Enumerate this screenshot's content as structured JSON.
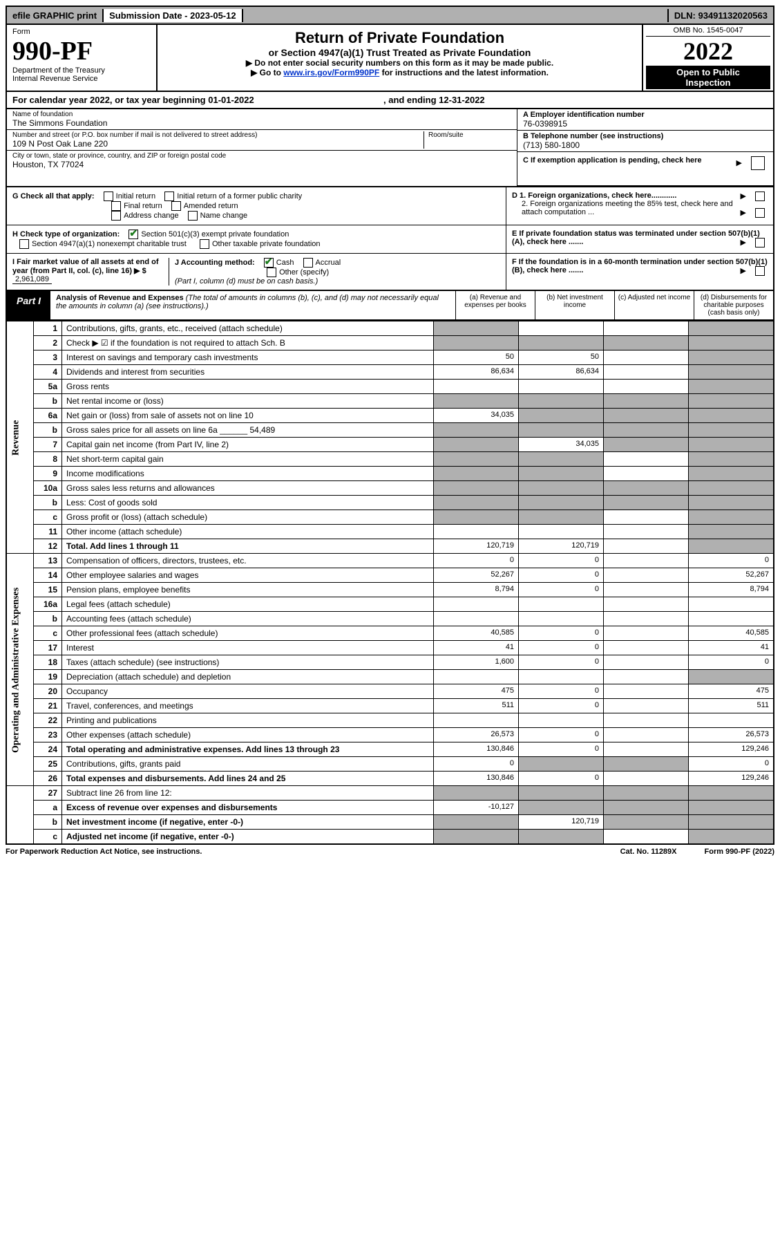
{
  "colors": {
    "shaded": "#b0b0b0",
    "link": "#0033cc",
    "check": "#1a7a1a"
  },
  "top": {
    "efile": "efile GRAPHIC print",
    "sub_label": "Submission Date - 2023-05-12",
    "dln": "DLN: 93491132020563"
  },
  "header": {
    "form_word": "Form",
    "form_num": "990-PF",
    "dept": "Department of the Treasury",
    "irs": "Internal Revenue Service",
    "title": "Return of Private Foundation",
    "subtitle": "or Section 4947(a)(1) Trust Treated as Private Foundation",
    "instr1": "▶ Do not enter social security numbers on this form as it may be made public.",
    "instr2_pre": "▶ Go to ",
    "instr2_link": "www.irs.gov/Form990PF",
    "instr2_post": " for instructions and the latest information.",
    "omb": "OMB No. 1545-0047",
    "year": "2022",
    "open1": "Open to Public",
    "open2": "Inspection"
  },
  "calyear": {
    "pre": "For calendar year 2022, or tax year beginning ",
    "begin": "01-01-2022",
    "mid": ", and ending ",
    "end": "12-31-2022"
  },
  "id": {
    "name_label": "Name of foundation",
    "name": "The Simmons Foundation",
    "addr_label": "Number and street (or P.O. box number if mail is not delivered to street address)",
    "addr": "109 N Post Oak Lane 220",
    "room_label": "Room/suite",
    "city_label": "City or town, state or province, country, and ZIP or foreign postal code",
    "city": "Houston, TX  77024",
    "a_label": "A Employer identification number",
    "a_val": "76-0398915",
    "b_label": "B Telephone number (see instructions)",
    "b_val": "(713) 580-1800",
    "c_label": "C If exemption application is pending, check here"
  },
  "g": {
    "label": "G Check all that apply:",
    "opts": [
      "Initial return",
      "Initial return of a former public charity",
      "Final return",
      "Amended return",
      "Address change",
      "Name change"
    ]
  },
  "h": {
    "label": "H Check type of organization:",
    "o1": "Section 501(c)(3) exempt private foundation",
    "o2": "Section 4947(a)(1) nonexempt charitable trust",
    "o3": "Other taxable private foundation"
  },
  "d": {
    "d1": "D 1. Foreign organizations, check here............",
    "d2": "2. Foreign organizations meeting the 85% test, check here and attach computation ..."
  },
  "e": "E  If private foundation status was terminated under section 507(b)(1)(A), check here .......",
  "f": "F  If the foundation is in a 60-month termination under section 507(b)(1)(B), check here .......",
  "i": {
    "label": "I Fair market value of all assets at end of year (from Part II, col. (c), line 16) ▶ $",
    "val": "2,961,089"
  },
  "j": {
    "label": "J Accounting method:",
    "o1": "Cash",
    "o2": "Accrual",
    "o3": "Other (specify)",
    "note": "(Part I, column (d) must be on cash basis.)"
  },
  "part1": {
    "tab": "Part I",
    "title": "Analysis of Revenue and Expenses",
    "note": " (The total of amounts in columns (b), (c), and (d) may not necessarily equal the amounts in column (a) (see instructions).)",
    "col_a": "(a)  Revenue and expenses per books",
    "col_b": "(b)  Net investment income",
    "col_c": "(c)  Adjusted net income",
    "col_d": "(d)  Disbursements for charitable purposes (cash basis only)"
  },
  "sections": {
    "revenue": "Revenue",
    "expenses": "Operating and Administrative Expenses"
  },
  "rows": [
    {
      "n": "1",
      "d": "Contributions, gifts, grants, etc., received (attach schedule)",
      "a": "",
      "b": "",
      "c": "",
      "dd": "",
      "sa": 1,
      "sd": 1
    },
    {
      "n": "2",
      "d": "Check ▶ ☑ if the foundation is not required to attach Sch. B",
      "a": "",
      "b": "",
      "c": "",
      "dd": "",
      "sb": 1,
      "sc": 1,
      "sd": 1,
      "sa": 1
    },
    {
      "n": "3",
      "d": "Interest on savings and temporary cash investments",
      "a": "50",
      "b": "50",
      "c": "",
      "dd": "",
      "sd": 1
    },
    {
      "n": "4",
      "d": "Dividends and interest from securities",
      "a": "86,634",
      "b": "86,634",
      "c": "",
      "dd": "",
      "sd": 1
    },
    {
      "n": "5a",
      "d": "Gross rents",
      "a": "",
      "b": "",
      "c": "",
      "dd": "",
      "sd": 1
    },
    {
      "n": "b",
      "d": "Net rental income or (loss)",
      "a": "",
      "b": "",
      "c": "",
      "dd": "",
      "sa": 1,
      "sb": 1,
      "sc": 1,
      "sd": 1
    },
    {
      "n": "6a",
      "d": "Net gain or (loss) from sale of assets not on line 10",
      "a": "34,035",
      "b": "",
      "c": "",
      "dd": "",
      "sb": 1,
      "sc": 1,
      "sd": 1
    },
    {
      "n": "b",
      "d": "Gross sales price for all assets on line 6a ______ 54,489",
      "a": "",
      "b": "",
      "c": "",
      "dd": "",
      "sa": 1,
      "sb": 1,
      "sc": 1,
      "sd": 1
    },
    {
      "n": "7",
      "d": "Capital gain net income (from Part IV, line 2)",
      "a": "",
      "b": "34,035",
      "c": "",
      "dd": "",
      "sa": 1,
      "sc": 1,
      "sd": 1
    },
    {
      "n": "8",
      "d": "Net short-term capital gain",
      "a": "",
      "b": "",
      "c": "",
      "dd": "",
      "sa": 1,
      "sb": 1,
      "sd": 1
    },
    {
      "n": "9",
      "d": "Income modifications",
      "a": "",
      "b": "",
      "c": "",
      "dd": "",
      "sa": 1,
      "sb": 1,
      "sd": 1
    },
    {
      "n": "10a",
      "d": "Gross sales less returns and allowances",
      "a": "",
      "b": "",
      "c": "",
      "dd": "",
      "sa": 1,
      "sb": 1,
      "sc": 1,
      "sd": 1
    },
    {
      "n": "b",
      "d": "Less: Cost of goods sold",
      "a": "",
      "b": "",
      "c": "",
      "dd": "",
      "sa": 1,
      "sb": 1,
      "sc": 1,
      "sd": 1
    },
    {
      "n": "c",
      "d": "Gross profit or (loss) (attach schedule)",
      "a": "",
      "b": "",
      "c": "",
      "dd": "",
      "sa": 1,
      "sb": 1,
      "sd": 1
    },
    {
      "n": "11",
      "d": "Other income (attach schedule)",
      "a": "",
      "b": "",
      "c": "",
      "dd": "",
      "sd": 1
    },
    {
      "n": "12",
      "d": "Total. Add lines 1 through 11",
      "a": "120,719",
      "b": "120,719",
      "c": "",
      "dd": "",
      "sd": 1,
      "bold": 1
    }
  ],
  "exp_rows": [
    {
      "n": "13",
      "d": "Compensation of officers, directors, trustees, etc.",
      "a": "0",
      "b": "0",
      "c": "",
      "dd": "0"
    },
    {
      "n": "14",
      "d": "Other employee salaries and wages",
      "a": "52,267",
      "b": "0",
      "c": "",
      "dd": "52,267"
    },
    {
      "n": "15",
      "d": "Pension plans, employee benefits",
      "a": "8,794",
      "b": "0",
      "c": "",
      "dd": "8,794"
    },
    {
      "n": "16a",
      "d": "Legal fees (attach schedule)",
      "a": "",
      "b": "",
      "c": "",
      "dd": ""
    },
    {
      "n": "b",
      "d": "Accounting fees (attach schedule)",
      "a": "",
      "b": "",
      "c": "",
      "dd": ""
    },
    {
      "n": "c",
      "d": "Other professional fees (attach schedule)",
      "a": "40,585",
      "b": "0",
      "c": "",
      "dd": "40,585"
    },
    {
      "n": "17",
      "d": "Interest",
      "a": "41",
      "b": "0",
      "c": "",
      "dd": "41"
    },
    {
      "n": "18",
      "d": "Taxes (attach schedule) (see instructions)",
      "a": "1,600",
      "b": "0",
      "c": "",
      "dd": "0"
    },
    {
      "n": "19",
      "d": "Depreciation (attach schedule) and depletion",
      "a": "",
      "b": "",
      "c": "",
      "dd": "",
      "sd": 1
    },
    {
      "n": "20",
      "d": "Occupancy",
      "a": "475",
      "b": "0",
      "c": "",
      "dd": "475"
    },
    {
      "n": "21",
      "d": "Travel, conferences, and meetings",
      "a": "511",
      "b": "0",
      "c": "",
      "dd": "511"
    },
    {
      "n": "22",
      "d": "Printing and publications",
      "a": "",
      "b": "",
      "c": "",
      "dd": ""
    },
    {
      "n": "23",
      "d": "Other expenses (attach schedule)",
      "a": "26,573",
      "b": "0",
      "c": "",
      "dd": "26,573"
    },
    {
      "n": "24",
      "d": "Total operating and administrative expenses. Add lines 13 through 23",
      "a": "130,846",
      "b": "0",
      "c": "",
      "dd": "129,246",
      "bold": 1
    },
    {
      "n": "25",
      "d": "Contributions, gifts, grants paid",
      "a": "0",
      "b": "",
      "c": "",
      "dd": "0",
      "sb": 1,
      "sc": 1
    },
    {
      "n": "26",
      "d": "Total expenses and disbursements. Add lines 24 and 25",
      "a": "130,846",
      "b": "0",
      "c": "",
      "dd": "129,246",
      "bold": 1
    }
  ],
  "bottom_rows": [
    {
      "n": "27",
      "d": "Subtract line 26 from line 12:",
      "a": "",
      "b": "",
      "c": "",
      "dd": "",
      "sa": 1,
      "sb": 1,
      "sc": 1,
      "sd": 1
    },
    {
      "n": "a",
      "d": "Excess of revenue over expenses and disbursements",
      "a": "-10,127",
      "b": "",
      "c": "",
      "dd": "",
      "sb": 1,
      "sc": 1,
      "sd": 1,
      "bold": 1
    },
    {
      "n": "b",
      "d": "Net investment income (if negative, enter -0-)",
      "a": "",
      "b": "120,719",
      "c": "",
      "dd": "",
      "sa": 1,
      "sc": 1,
      "sd": 1,
      "bold": 1
    },
    {
      "n": "c",
      "d": "Adjusted net income (if negative, enter -0-)",
      "a": "",
      "b": "",
      "c": "",
      "dd": "",
      "sa": 1,
      "sb": 1,
      "sd": 1,
      "bold": 1
    }
  ],
  "footer": {
    "left": "For Paperwork Reduction Act Notice, see instructions.",
    "mid": "Cat. No. 11289X",
    "right": "Form 990-PF (2022)"
  }
}
